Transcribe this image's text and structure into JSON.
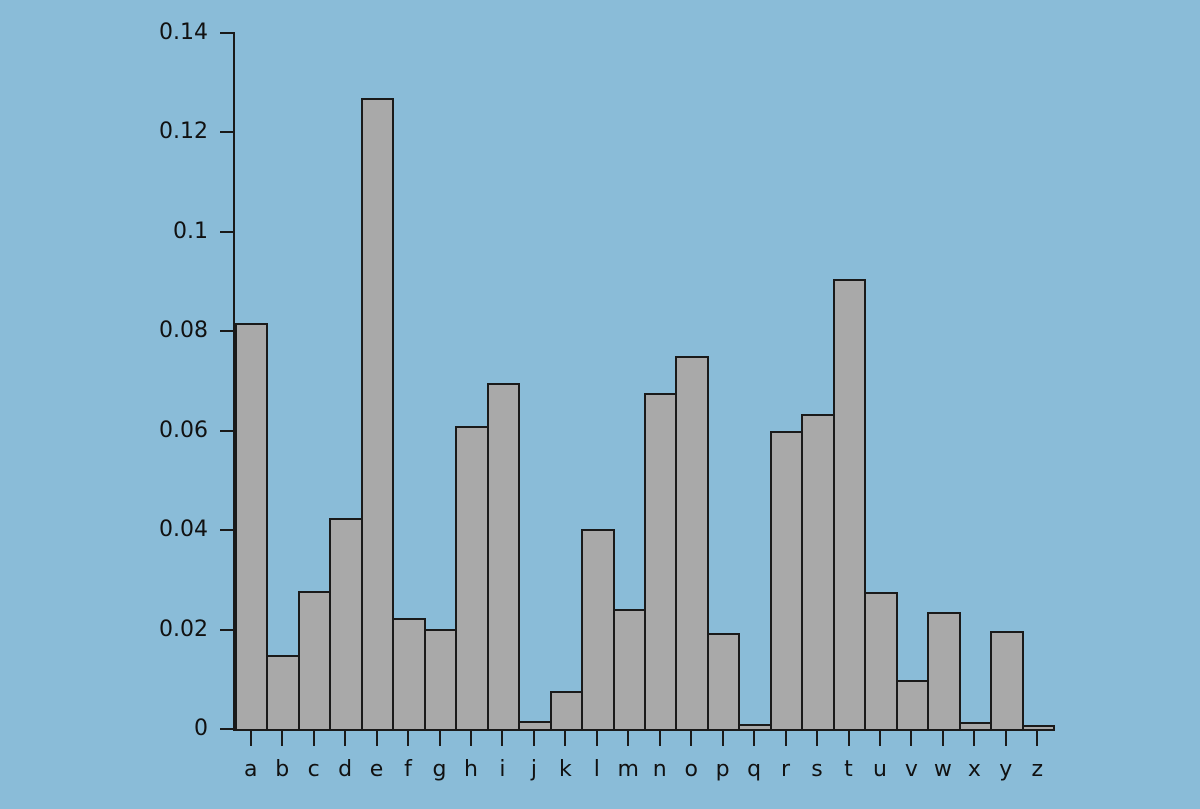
{
  "chart_data": {
    "type": "bar",
    "title": "",
    "xlabel": "",
    "ylabel": "",
    "categories": [
      "a",
      "b",
      "c",
      "d",
      "e",
      "f",
      "g",
      "h",
      "i",
      "j",
      "k",
      "l",
      "m",
      "n",
      "o",
      "p",
      "q",
      "r",
      "s",
      "t",
      "u",
      "v",
      "w",
      "x",
      "y",
      "z"
    ],
    "values": [
      0.08167,
      0.01492,
      0.02782,
      0.04253,
      0.12702,
      0.02228,
      0.02015,
      0.06094,
      0.06966,
      0.00153,
      0.00772,
      0.04025,
      0.02406,
      0.06749,
      0.07507,
      0.01929,
      0.00095,
      0.05987,
      0.06327,
      0.09056,
      0.02758,
      0.00978,
      0.0236,
      0.0015,
      0.01974,
      0.00074
    ],
    "ylim": [
      0,
      0.14
    ],
    "y_ticks": [
      0,
      0.02,
      0.04,
      0.06,
      0.08,
      0.1,
      0.12,
      0.14
    ],
    "y_tick_labels": [
      "0",
      "0.02",
      "0.04",
      "0.06",
      "0.08",
      "0.1",
      "0.12",
      "0.14"
    ],
    "grid": false,
    "legend": false,
    "colors": {
      "background": "#8abcd8",
      "bar_fill": "#a9a9a9",
      "bar_border": "#1a1a1a",
      "axis": "#1a1a1a",
      "text": "#111111"
    }
  }
}
